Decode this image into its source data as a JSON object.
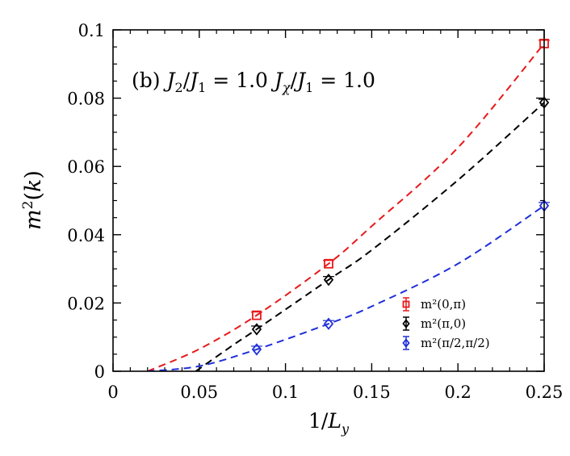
{
  "chart_data": {
    "type": "scatter",
    "title": "",
    "annotation": "(b)  J₂/J₁ = 1.0    J_χ/J₁ = 1.0",
    "xlabel": "1/L_y",
    "ylabel": "m²(k)",
    "xlim": [
      0,
      0.25
    ],
    "ylim": [
      0,
      0.1
    ],
    "xticks": [
      0,
      0.05,
      0.1,
      0.15,
      0.2,
      0.25
    ],
    "xtick_labels": [
      "0",
      "0.05",
      "0.1",
      "0.15",
      "0.2",
      "0.25"
    ],
    "yticks": [
      0,
      0.02,
      0.04,
      0.06,
      0.08,
      0.1
    ],
    "ytick_labels": [
      "0",
      "0.02",
      "0.04",
      "0.06",
      "0.08",
      "0.1"
    ],
    "legend_position": "bottom-right",
    "series": [
      {
        "name": "m²(0,π)",
        "color": "#e8191b",
        "marker": "square",
        "x": [
          0.0833,
          0.125,
          0.25
        ],
        "y": [
          0.0164,
          0.0315,
          0.096
        ],
        "fit": {
          "x": [
            0.02,
            0.05,
            0.0833,
            0.125,
            0.15,
            0.2,
            0.25
          ],
          "y": [
            0.0,
            0.0065,
            0.0164,
            0.0315,
            0.0425,
            0.0655,
            0.096
          ]
        }
      },
      {
        "name": "m²(π,0)",
        "color": "#000000",
        "marker": "diamond",
        "x": [
          0.0833,
          0.125,
          0.25
        ],
        "y": [
          0.0123,
          0.0268,
          0.0787
        ],
        "fit": {
          "x": [
            0.048,
            0.07,
            0.0833,
            0.125,
            0.15,
            0.2,
            0.25
          ],
          "y": [
            0.0,
            0.0078,
            0.0123,
            0.0268,
            0.0355,
            0.056,
            0.0787
          ]
        }
      },
      {
        "name": "m²(π/2,π/2)",
        "color": "#1f2fd9",
        "marker": "diamond",
        "x": [
          0.0833,
          0.125,
          0.25
        ],
        "y": [
          0.0064,
          0.0139,
          0.0485
        ],
        "fit": {
          "x": [
            0.02,
            0.05,
            0.0833,
            0.125,
            0.15,
            0.2,
            0.25
          ],
          "y": [
            0.0,
            0.0015,
            0.0064,
            0.0139,
            0.019,
            0.0315,
            0.0485
          ]
        }
      }
    ]
  }
}
